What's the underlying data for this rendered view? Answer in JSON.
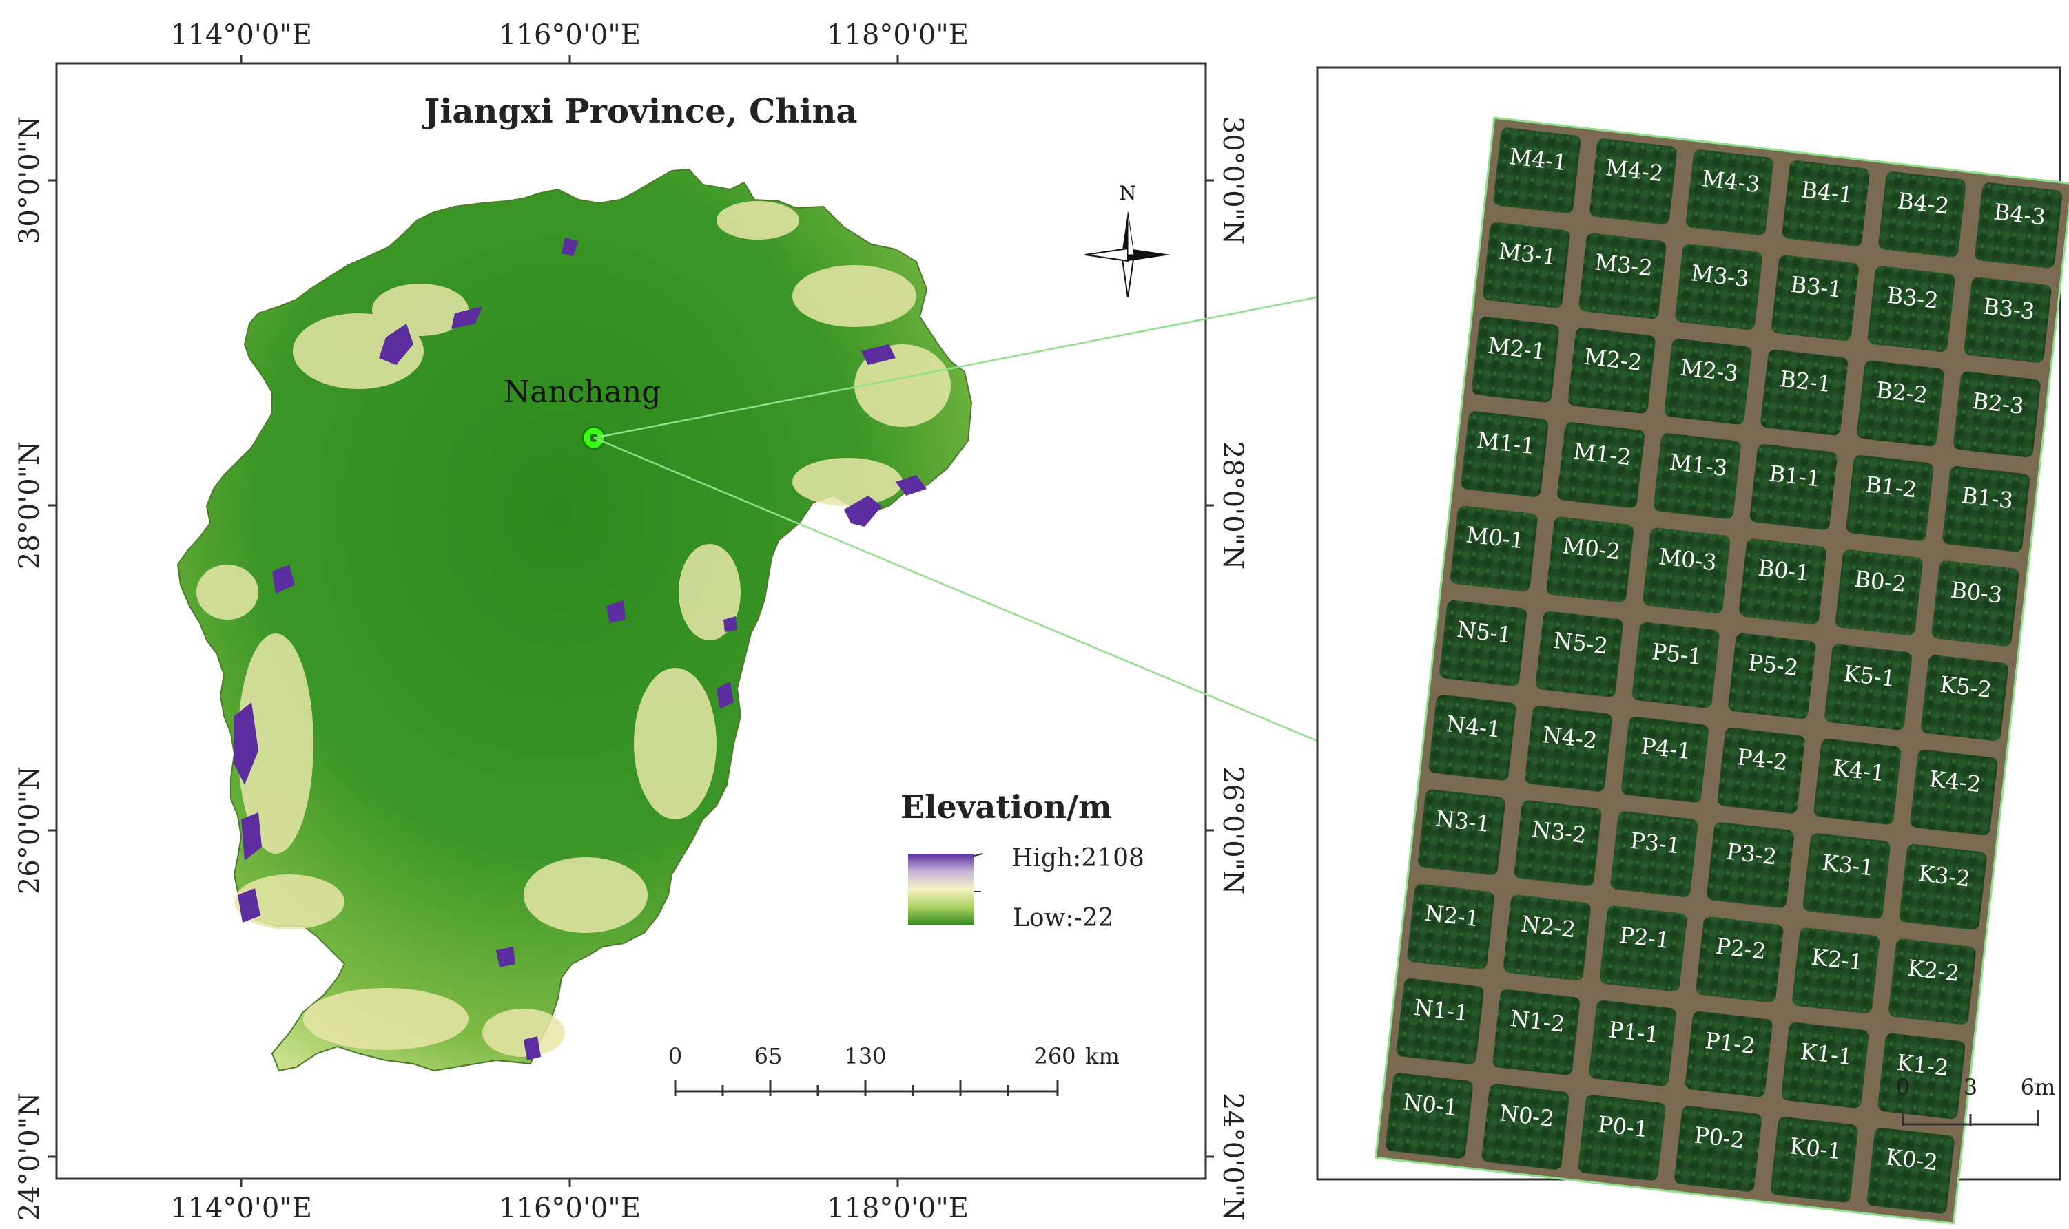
{
  "main_map": {
    "title": "Jiangxi Province, China",
    "city_label": "Nanchang",
    "north_arrow_label": "N",
    "top_ticks": [
      "114°0'0\"E",
      "116°0'0\"E",
      "118°0'0\"E"
    ],
    "bottom_ticks": [
      "114°0'0\"E",
      "116°0'0\"E",
      "118°0'0\"E"
    ],
    "left_ticks": [
      "30°0'0\"N",
      "28°0'0\"N",
      "26°0'0\"N",
      "24°0'0\"N"
    ],
    "right_ticks": [
      "30°0'0\"N",
      "28°0'0\"N",
      "26°0'0\"N",
      "24°0'0\"N"
    ],
    "legend": {
      "title": "Elevation/m",
      "high_label": "High:2108",
      "low_label": "Low:-22",
      "colors": [
        "#5b2d9e",
        "#c9b6dc",
        "#f5f3c2",
        "#a7cf5c",
        "#2f8a1e"
      ]
    },
    "scale_bar": {
      "labels": [
        "0",
        "65",
        "130",
        "260"
      ],
      "unit": "km"
    },
    "colors": {
      "lowland": "#2f8a1e",
      "midland": "#9bc85a",
      "upland": "#efeab0",
      "peak": "#5b2d9e",
      "city_marker": "#39ff14"
    }
  },
  "inset": {
    "plot_labels": [
      [
        "M4-1",
        "M4-2",
        "M4-3",
        "B4-1",
        "B4-2",
        "B4-3"
      ],
      [
        "M3-1",
        "M3-2",
        "M3-3",
        "B3-1",
        "B3-2",
        "B3-3"
      ],
      [
        "M2-1",
        "M2-2",
        "M2-3",
        "B2-1",
        "B2-2",
        "B2-3"
      ],
      [
        "M1-1",
        "M1-2",
        "M1-3",
        "B1-1",
        "B1-2",
        "B1-3"
      ],
      [
        "M0-1",
        "M0-2",
        "M0-3",
        "B0-1",
        "B0-2",
        "B0-3"
      ],
      [
        "N5-1",
        "N5-2",
        "P5-1",
        "P5-2",
        "K5-1",
        "K5-2"
      ],
      [
        "N4-1",
        "N4-2",
        "P4-1",
        "P4-2",
        "K4-1",
        "K4-2"
      ],
      [
        "N3-1",
        "N3-2",
        "P3-1",
        "P3-2",
        "K3-1",
        "K3-2"
      ],
      [
        "N2-1",
        "N2-2",
        "P2-1",
        "P2-2",
        "K2-1",
        "K2-2"
      ],
      [
        "N1-1",
        "N1-2",
        "P1-1",
        "P1-2",
        "K1-1",
        "K1-2"
      ],
      [
        "N0-1",
        "N0-2",
        "P0-1",
        "P0-2",
        "K0-1",
        "K0-2"
      ]
    ],
    "scale_bar": {
      "labels": [
        "0",
        "3",
        "6m"
      ]
    },
    "colors": {
      "canopy": "#1f4a22",
      "soil": "#7a6a52"
    }
  }
}
